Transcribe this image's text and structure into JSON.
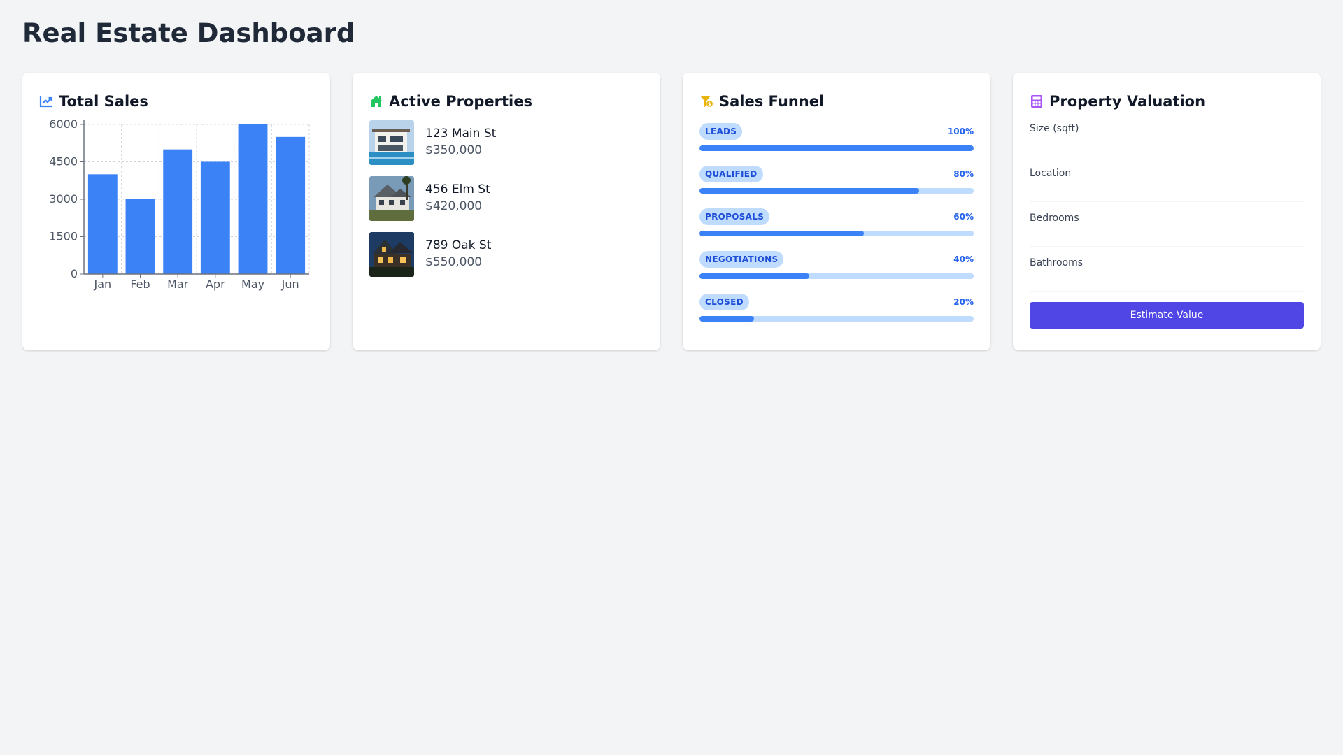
{
  "page": {
    "title": "Real Estate Dashboard"
  },
  "sales_card": {
    "title": "Total Sales",
    "icon": "chart-line-icon",
    "icon_color": "#3b82f6"
  },
  "chart_data": {
    "type": "bar",
    "categories": [
      "Jan",
      "Feb",
      "Mar",
      "Apr",
      "May",
      "Jun"
    ],
    "values": [
      4000,
      3000,
      5000,
      4500,
      6000,
      5500
    ],
    "title": "",
    "xlabel": "",
    "ylabel": "",
    "ylim": [
      0,
      6000
    ],
    "yticks": [
      "0",
      "1500",
      "3000",
      "4500",
      "6000"
    ],
    "grid": true,
    "bar_color": "#3b82f6"
  },
  "properties_card": {
    "title": "Active Properties",
    "icon": "house-icon",
    "icon_color": "#22c55e",
    "items": [
      {
        "address": "123 Main St",
        "price": "$350,000"
      },
      {
        "address": "456 Elm St",
        "price": "$420,000"
      },
      {
        "address": "789 Oak St",
        "price": "$550,000"
      }
    ]
  },
  "funnel_card": {
    "title": "Sales Funnel",
    "icon": "funnel-dollar-icon",
    "icon_color": "#eab308",
    "stages": [
      {
        "label": "LEADS",
        "percent": 100,
        "percent_label": "100%"
      },
      {
        "label": "QUALIFIED",
        "percent": 80,
        "percent_label": "80%"
      },
      {
        "label": "PROPOSALS",
        "percent": 60,
        "percent_label": "60%"
      },
      {
        "label": "NEGOTIATIONS",
        "percent": 40,
        "percent_label": "40%"
      },
      {
        "label": "CLOSED",
        "percent": 20,
        "percent_label": "20%"
      }
    ]
  },
  "valuation_card": {
    "title": "Property Valuation",
    "icon": "calculator-icon",
    "icon_color": "#a855f7",
    "fields": [
      {
        "label": "Size (sqft)",
        "value": ""
      },
      {
        "label": "Location",
        "value": ""
      },
      {
        "label": "Bedrooms",
        "value": ""
      },
      {
        "label": "Bathrooms",
        "value": ""
      }
    ],
    "button_label": "Estimate Value",
    "button_color": "#4f46e5"
  }
}
